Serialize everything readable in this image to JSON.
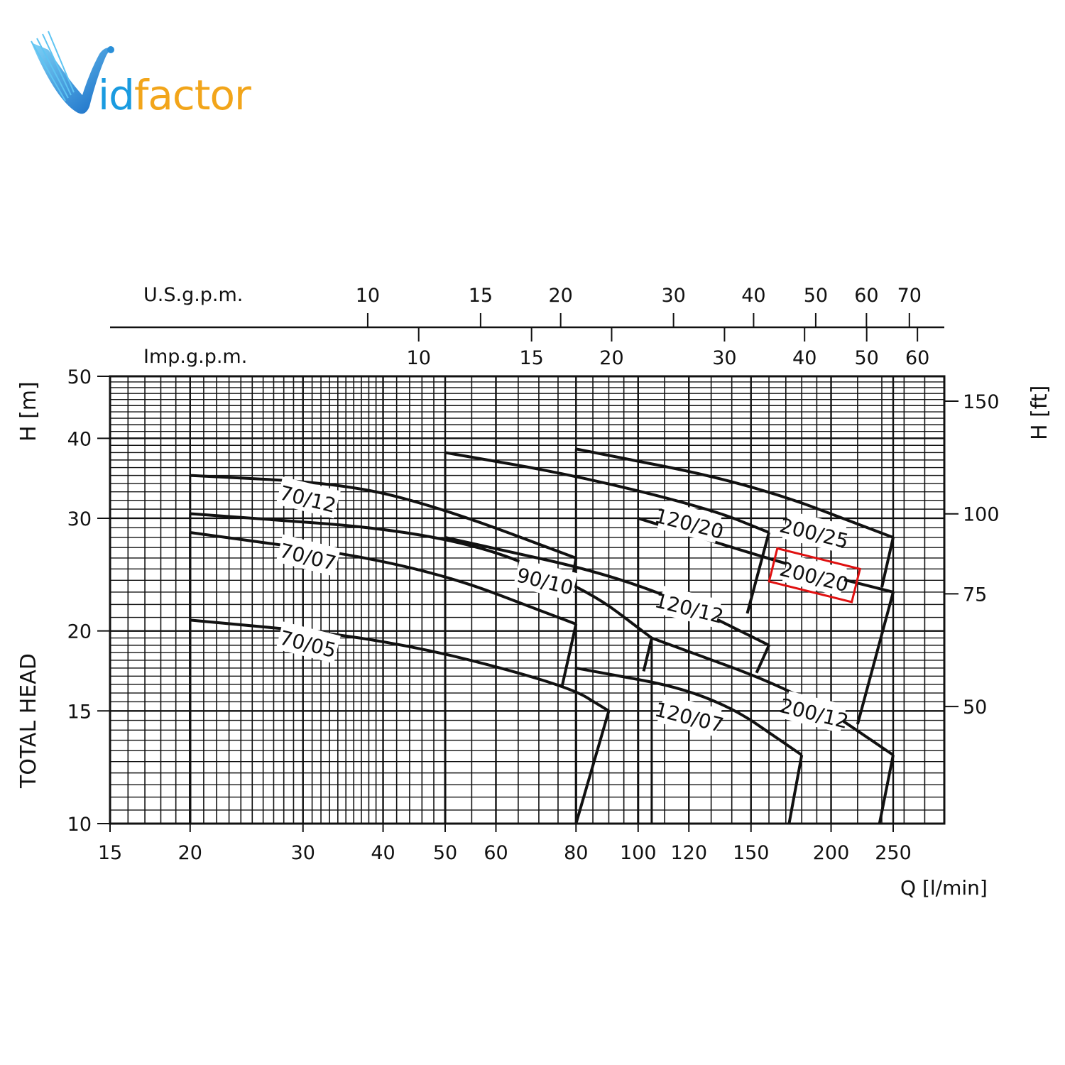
{
  "logo": {
    "text_i": "id",
    "text_rest": "factor",
    "colors": {
      "blue": "#1a9be0",
      "orange": "#f2a51a"
    }
  },
  "chart_data": {
    "type": "line",
    "x_scale": "log",
    "y_scale": "log",
    "grid": true,
    "xlabel": "Q [l/min]",
    "ylabel_left_top": "H [m]",
    "ylabel_left_bottom": "TOTAL HEAD",
    "ylabel_right": "H [ft]",
    "top_axis_1_label": "U.S.g.p.m.",
    "top_axis_2_label": "Imp.g.p.m.",
    "xlim": [
      15,
      300
    ],
    "ylim": [
      10,
      50
    ],
    "x_ticks": [
      15,
      20,
      30,
      40,
      50,
      60,
      80,
      100,
      120,
      150,
      200,
      250
    ],
    "y_ticks": [
      10,
      15,
      20,
      30,
      40,
      50
    ],
    "y_right_ticks": [
      50,
      75,
      100,
      150
    ],
    "usgpm_ticks": [
      10,
      15,
      20,
      30,
      40,
      50,
      60,
      70
    ],
    "impgpm_ticks": [
      10,
      15,
      20,
      30,
      40,
      50,
      60
    ],
    "highlight_series": "200/20",
    "highlight_color": "#e01010",
    "series": [
      {
        "name": "70/05",
        "x": [
          20,
          40,
          77,
          90
        ],
        "y": [
          20.8,
          19.5,
          16.5,
          15.0
        ],
        "tail": [
          [
            90,
            15.0
          ],
          [
            80,
            10.0
          ]
        ],
        "label_at": [
          30.5,
          19.0
        ]
      },
      {
        "name": "70/07",
        "x": [
          20,
          45,
          80
        ],
        "y": [
          28.5,
          25.5,
          20.5
        ],
        "tail": [
          [
            80,
            20.5
          ],
          [
            76,
            16.3
          ]
        ],
        "label_at": [
          30.5,
          26.0
        ]
      },
      {
        "name": "70/12",
        "x": [
          20,
          35,
          50,
          80
        ],
        "y": [
          35.0,
          34.0,
          31.0,
          26.0
        ],
        "tail": [
          [
            80,
            26.0
          ],
          [
            78,
            22.4
          ]
        ],
        "label_at": [
          30.5,
          32.0
        ]
      },
      {
        "name": "90/10",
        "x": [
          20,
          50,
          82,
          105
        ],
        "y": [
          30.5,
          28.5,
          23.5,
          19.5
        ],
        "tail": [
          [
            105,
            19.5
          ],
          [
            102,
            17.3
          ]
        ],
        "label_at": [
          71.5,
          23.8
        ]
      },
      {
        "name": "120/07",
        "x": [
          80,
          130,
          180
        ],
        "y": [
          17.5,
          16.0,
          12.8
        ],
        "tail": [
          [
            180,
            12.8
          ],
          [
            172,
            10.0
          ]
        ],
        "label_at": [
          120,
          14.6
        ]
      },
      {
        "name": "120/12",
        "x": [
          50,
          100,
          160
        ],
        "y": [
          28.0,
          24.0,
          19.0
        ],
        "tail": [
          [
            160,
            19.0
          ],
          [
            153,
            17.2
          ]
        ],
        "label_at": [
          120,
          21.6
        ]
      },
      {
        "name": "120/20",
        "x": [
          50,
          80,
          130,
          160
        ],
        "y": [
          38.0,
          35.0,
          31.0,
          28.5
        ],
        "tail": [
          [
            160,
            28.5
          ],
          [
            148,
            21.3
          ]
        ],
        "label_at": [
          120,
          29.3
        ]
      },
      {
        "name": "200/12",
        "x": [
          105,
          180,
          250
        ],
        "y": [
          19.5,
          16.0,
          12.8
        ],
        "tail": [
          [
            250,
            12.8
          ],
          [
            238,
            10.0
          ]
        ],
        "label_at": [
          188,
          14.8
        ]
      },
      {
        "name": "200/20",
        "x": [
          100,
          180,
          250
        ],
        "y": [
          30.0,
          25.0,
          23.0
        ],
        "tail": [
          [
            250,
            23.0
          ],
          [
            220,
            14.3
          ]
        ],
        "label_at": [
          188,
          24.2
        ]
      },
      {
        "name": "200/25",
        "x": [
          80,
          150,
          250
        ],
        "y": [
          38.5,
          34.0,
          28.0
        ],
        "tail": [
          [
            250,
            28.0
          ],
          [
            240,
            23.4
          ]
        ],
        "label_at": [
          188,
          28.3
        ]
      }
    ]
  }
}
